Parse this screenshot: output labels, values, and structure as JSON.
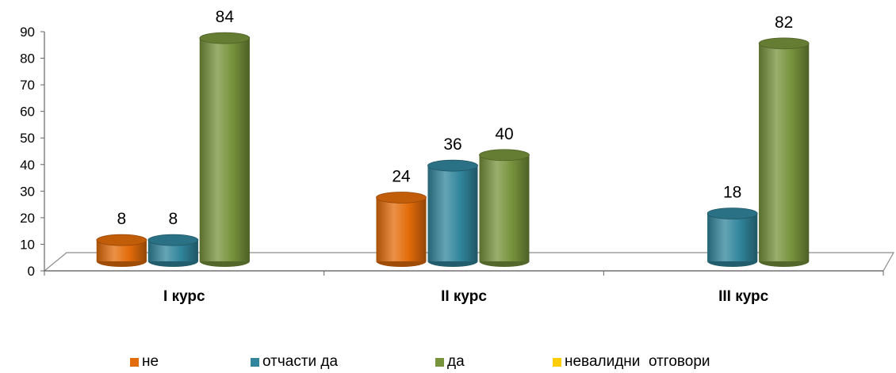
{
  "chart_data": {
    "type": "bar",
    "categories": [
      "I курс",
      "II курс",
      "III курс"
    ],
    "series": [
      {
        "name": "не",
        "values": [
          8,
          24,
          null
        ],
        "color": "#E36C0A"
      },
      {
        "name": "отчасти да",
        "values": [
          8,
          36,
          18
        ],
        "color": "#31859C"
      },
      {
        "name": "да",
        "values": [
          84,
          40,
          82
        ],
        "color": "#77933C"
      },
      {
        "name": "невалидни  отговори",
        "values": [
          null,
          null,
          null
        ],
        "color": "#FFCC00"
      }
    ],
    "ylim": [
      0,
      90
    ],
    "yticks": [
      0,
      10,
      20,
      30,
      40,
      50,
      60,
      70,
      80,
      90
    ],
    "title": "",
    "xlabel": "",
    "ylabel": "",
    "legend_position": "bottom",
    "grid": false,
    "style": "3d-cylinder"
  }
}
